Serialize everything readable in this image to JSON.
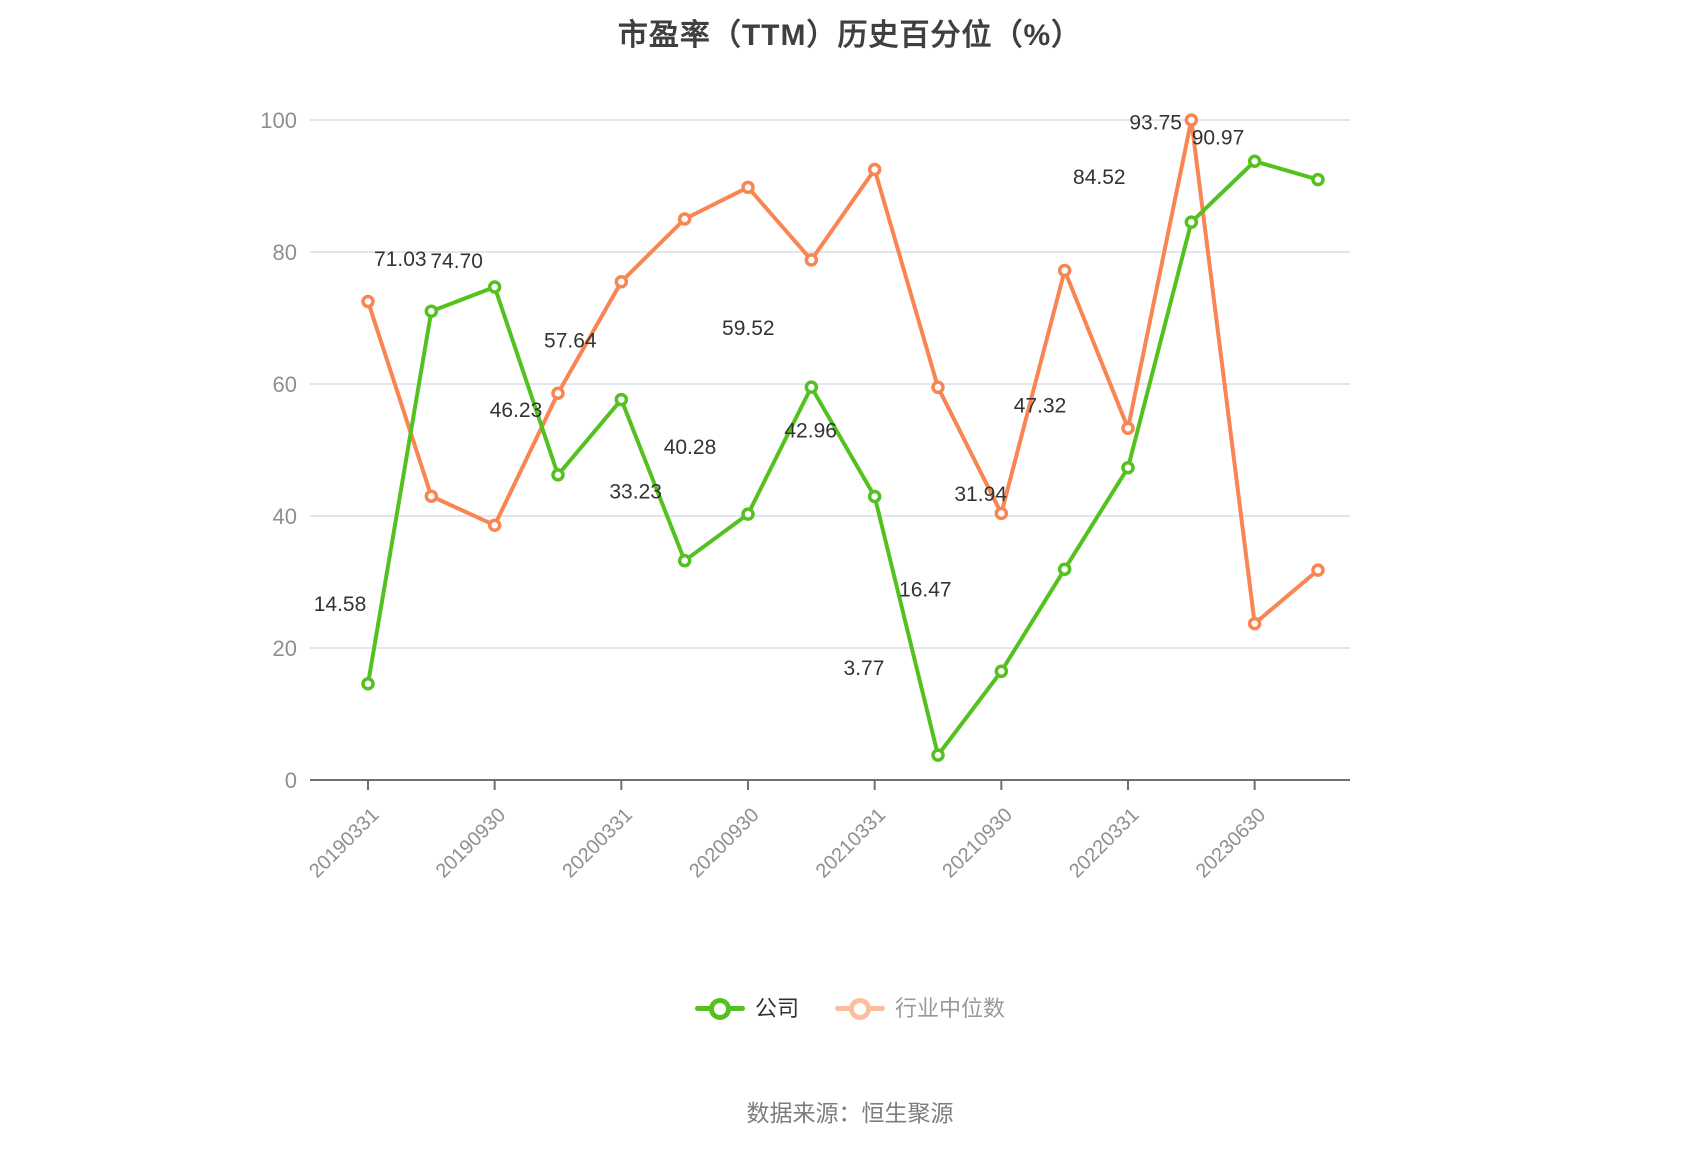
{
  "title": "市盈率（TTM）历史百分位（%）",
  "source_note": "数据来源：恒生聚源",
  "legend": {
    "company": {
      "label": "公司",
      "marker_color": "#55c120",
      "text_color": "#333333"
    },
    "industry": {
      "label": "行业中位数",
      "marker_color": "#fbbfa0",
      "text_color": "#999999"
    }
  },
  "chart_data": {
    "type": "line",
    "title": "市盈率（TTM）历史百分位（%）",
    "x_tick_labels": [
      "20190331",
      "20190930",
      "20200331",
      "20200930",
      "20210331",
      "20210930",
      "20220331",
      "20230630"
    ],
    "points_per_tick": 2,
    "series": [
      {
        "name": "公司",
        "color": "#55c120",
        "data_labels": true,
        "values": [
          14.58,
          71.03,
          74.7,
          46.23,
          57.64,
          33.23,
          40.28,
          59.52,
          42.96,
          3.77,
          16.47,
          31.94,
          47.32,
          84.52,
          93.75,
          90.97
        ]
      },
      {
        "name": "行业中位数",
        "color": "#f88552",
        "data_labels": false,
        "values": [
          72.5,
          43.0,
          38.6,
          58.6,
          75.5,
          85.0,
          89.8,
          78.8,
          92.5,
          59.5,
          40.4,
          77.2,
          53.3,
          100.0,
          23.7,
          31.8
        ]
      }
    ],
    "ylim": [
      0,
      100
    ],
    "yticks": [
      0,
      20,
      40,
      60,
      80,
      100
    ],
    "grid": true,
    "legend_position": "bottom",
    "label_color": "#333333",
    "axis_line_color": "#6e7079",
    "grid_color": "#e3e6ee",
    "tick_label_color": "#8f8f8f"
  }
}
